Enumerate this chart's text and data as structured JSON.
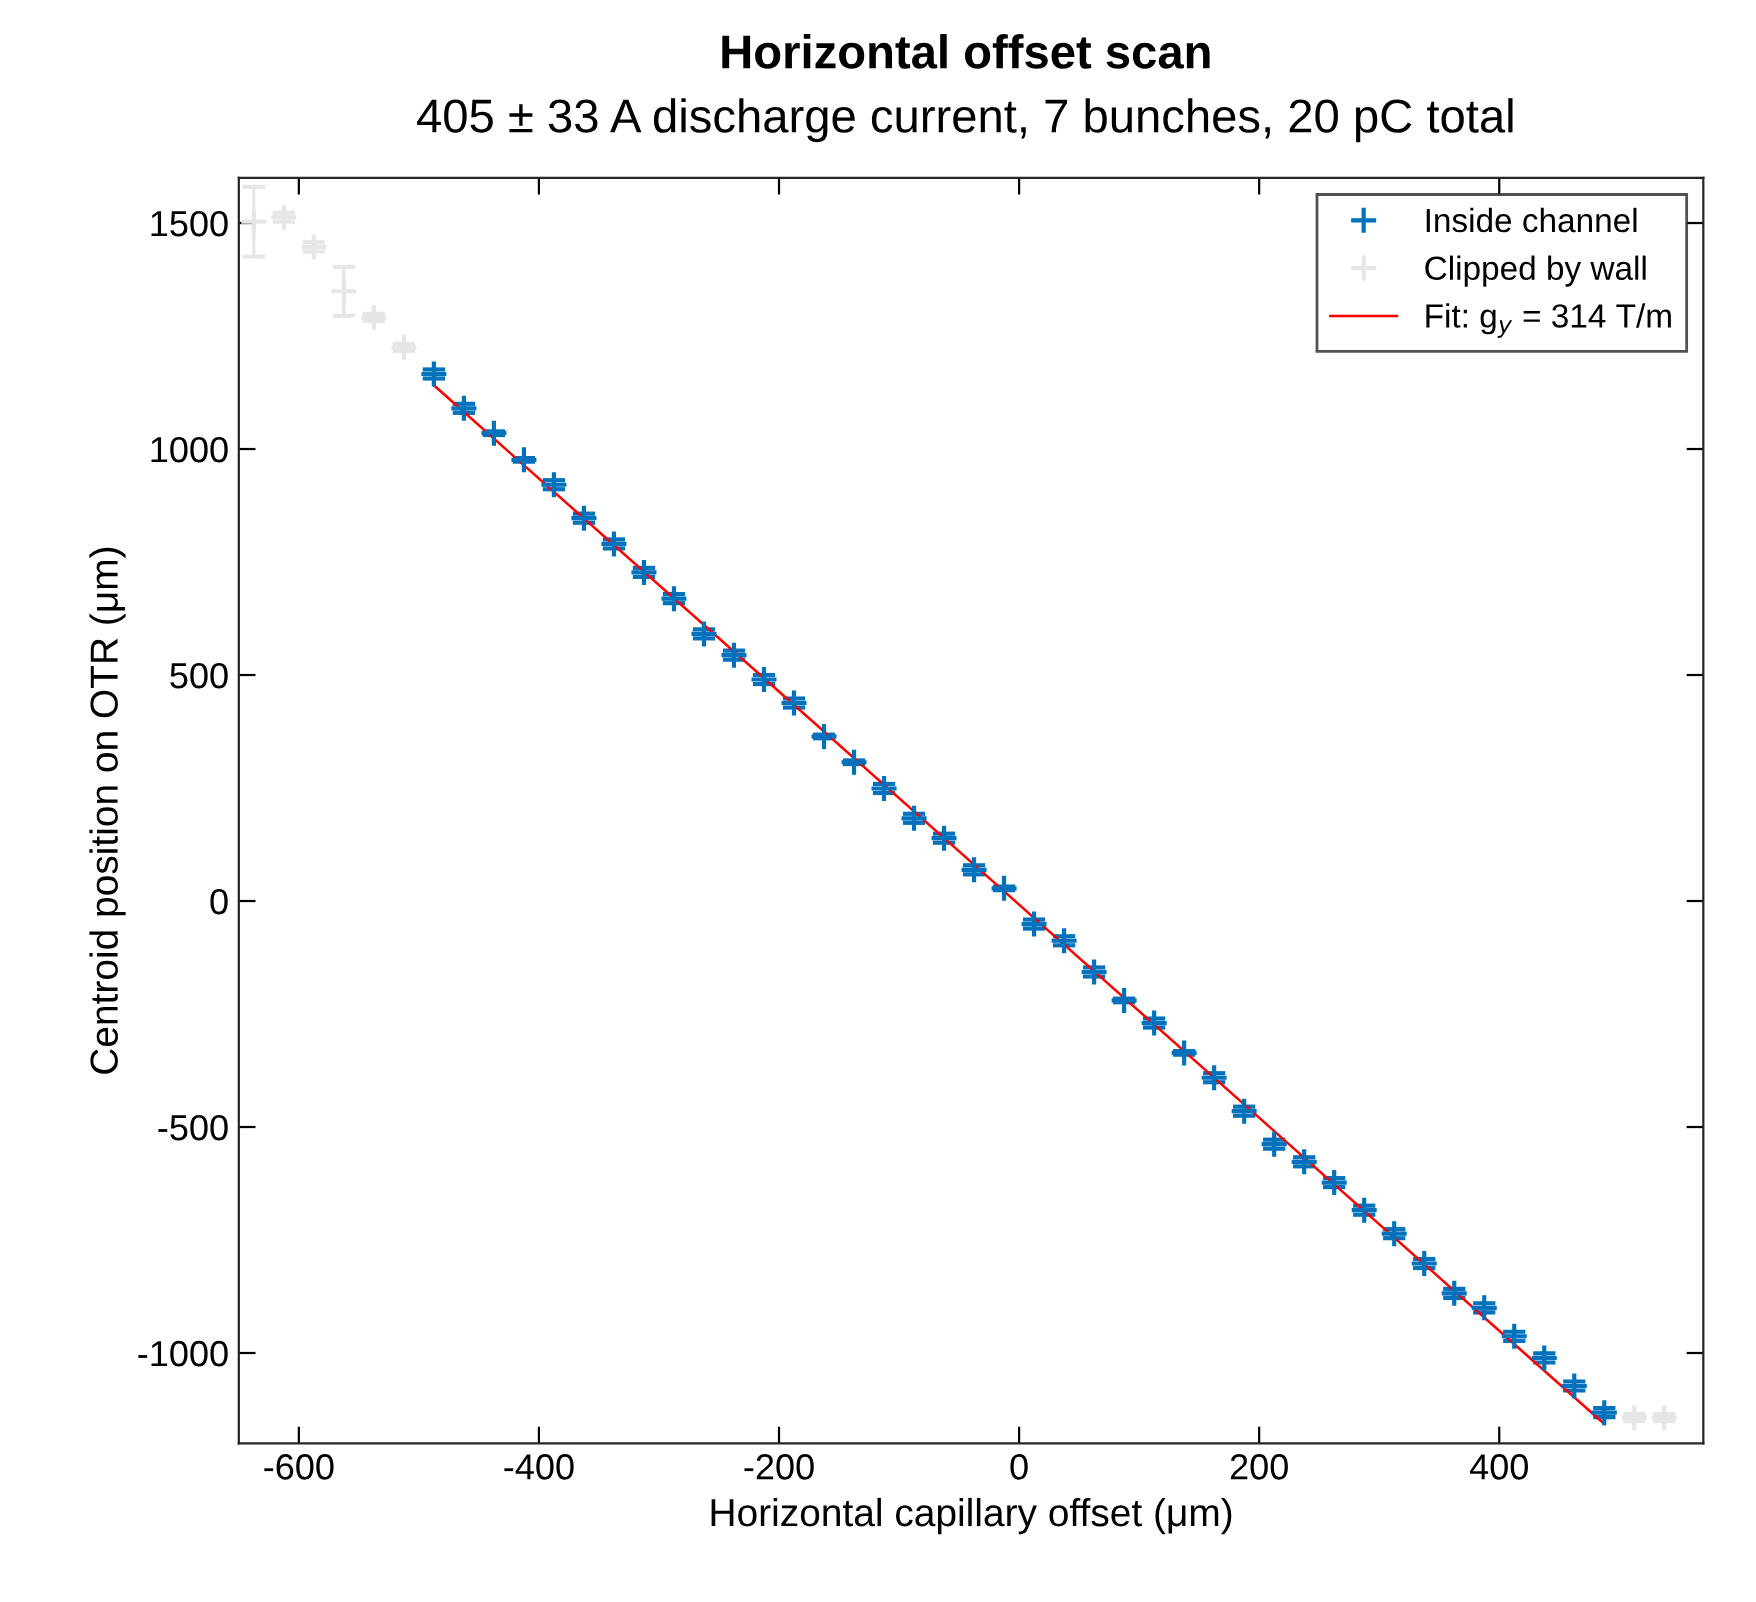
{
  "chart_data": {
    "type": "scatter",
    "title": "Horizontal offset scan",
    "subtitle": "405 ± 33 A discharge current, 7 bunches, 20 pC total",
    "xlabel": "Horizontal capillary offset (μm)",
    "ylabel": "Centroid position on OTR (μm)",
    "xlim": [
      -650,
      570
    ],
    "ylim": [
      -1200,
      1600
    ],
    "xticks": [
      -600,
      -400,
      -200,
      0,
      200,
      400
    ],
    "yticks": [
      -1000,
      -500,
      0,
      500,
      1000,
      1500
    ],
    "grid": false,
    "legend": "top right",
    "marker": "cross",
    "series": [
      {
        "name": "Inside channel",
        "color": "#0072bd",
        "x": [
          -487.5,
          -462.5,
          -437.5,
          -412.5,
          -387.5,
          -362.5,
          -337.5,
          -312.5,
          -287.5,
          -262.5,
          -237.5,
          -212.5,
          -187.5,
          -162.5,
          -137.5,
          -112.5,
          -87.5,
          -62.5,
          -37.5,
          -12.5,
          12.5,
          37.5,
          62.5,
          87.5,
          112.5,
          137.5,
          162.5,
          187.5,
          212.5,
          237.5,
          262.5,
          287.5,
          312.5,
          337.5,
          362.5,
          387.5,
          412.5,
          437.5,
          462.5,
          487.5
        ],
        "values": [
          1166,
          1090,
          1035,
          976,
          921,
          847,
          790,
          727,
          669,
          591,
          544,
          490,
          438,
          364,
          307,
          249,
          183,
          139,
          69,
          28,
          -51,
          -88,
          -157,
          -220,
          -270,
          -336,
          -391,
          -465,
          -538,
          -577,
          -623,
          -684,
          -736,
          -802,
          -868,
          -900,
          -963,
          -1011,
          -1073,
          -1132
        ],
        "errors": [
          10,
          10,
          4,
          4,
          10,
          10,
          10,
          10,
          10,
          10,
          10,
          10,
          10,
          4,
          4,
          10,
          10,
          10,
          10,
          4,
          10,
          10,
          10,
          4,
          10,
          4,
          10,
          10,
          10,
          10,
          10,
          10,
          10,
          10,
          10,
          10,
          10,
          10,
          10,
          10
        ]
      },
      {
        "name": "Clipped by wall",
        "color": "#e6e6e6",
        "x": [
          -637.5,
          -612.5,
          -587.5,
          -562.5,
          -537.5,
          -512.5,
          512.5,
          537.5
        ],
        "values": [
          1503,
          1513,
          1447,
          1349,
          1291,
          1225,
          -1143,
          -1143
        ],
        "errors": [
          77,
          10,
          10,
          54,
          8,
          8,
          8,
          8
        ]
      },
      {
        "name": "Fit: g$_{y}$ = 314 T/m",
        "color": "#ff0000",
        "type": "line",
        "line_style": "solid",
        "marker": "none",
        "x": [
          -487.5,
          487.5
        ],
        "values": [
          1141,
          -1157
        ]
      }
    ]
  }
}
